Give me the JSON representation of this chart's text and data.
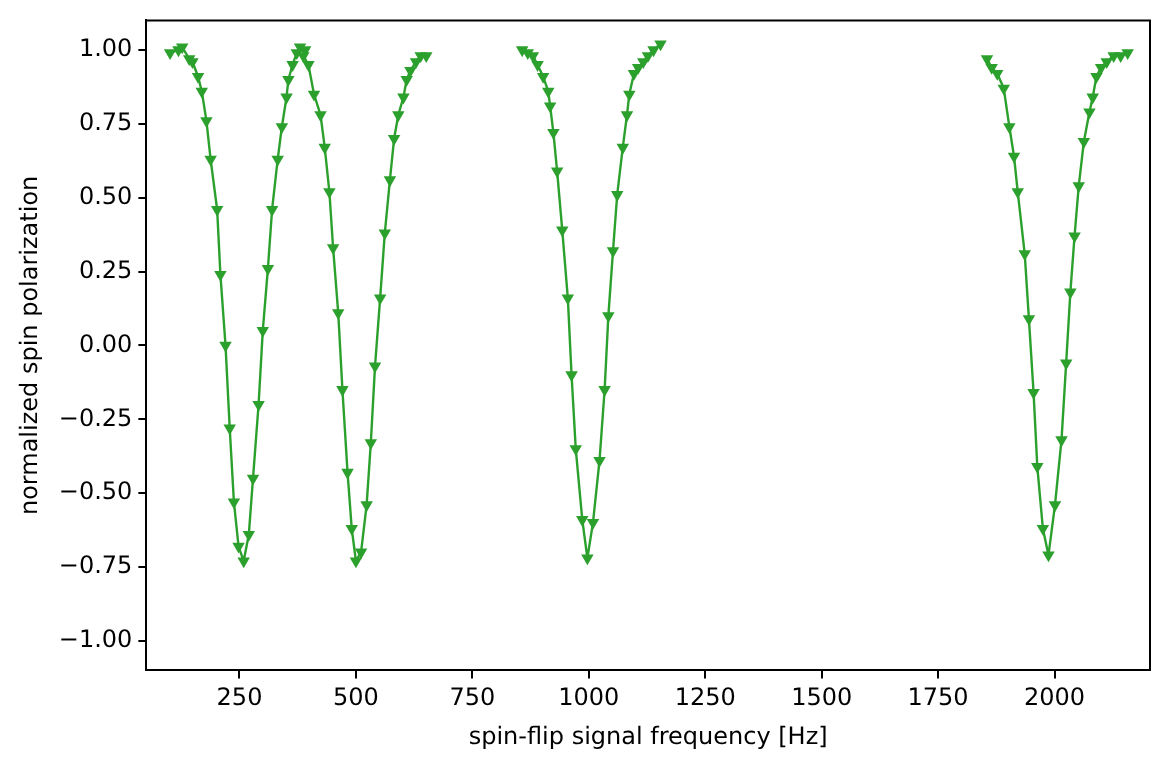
{
  "chart_data": {
    "type": "line",
    "xlabel": "spin-flip signal frequency [Hz]",
    "ylabel": "normalized spin polarization",
    "xlim": [
      50,
      2205
    ],
    "ylim": [
      -1.1,
      1.1
    ],
    "xticks": [
      250,
      500,
      750,
      1000,
      1250,
      1500,
      1750,
      2000
    ],
    "yticks": [
      {
        "value": -1,
        "label": "−1.00"
      },
      {
        "value": -0.75,
        "label": "−0.75"
      },
      {
        "value": -0.5,
        "label": "−0.50"
      },
      {
        "value": -0.25,
        "label": "−0.25"
      },
      {
        "value": 0,
        "label": "0.00"
      },
      {
        "value": 0.25,
        "label": "0.25"
      },
      {
        "value": 0.5,
        "label": "0.50"
      },
      {
        "value": 0.75,
        "label": "0.75"
      },
      {
        "value": 1,
        "label": "1.00"
      }
    ],
    "grid": false,
    "legend": false,
    "marker": "triangle",
    "line_style": "solid",
    "series": [
      {
        "color": "#2ca02c",
        "x": [
          101,
          119,
          127,
          142,
          149,
          161,
          169,
          179,
          188,
          202,
          209,
          220,
          229,
          238,
          248,
          259,
          270,
          279,
          291,
          300,
          311,
          320,
          332,
          341,
          351,
          355,
          364,
          373,
          380,
          391
        ],
        "values": [
          0.99,
          1.0,
          1.01,
          0.97,
          0.96,
          0.91,
          0.86,
          0.76,
          0.63,
          0.46,
          0.24,
          0.0,
          -0.28,
          -0.53,
          -0.68,
          -0.73,
          -0.64,
          -0.45,
          -0.2,
          0.05,
          0.26,
          0.46,
          0.63,
          0.74,
          0.84,
          0.9,
          0.95,
          0.99,
          1.01,
          1.0
        ]
      },
      {
        "color": "#2ca02c",
        "x": [
          387,
          398,
          410,
          424,
          433,
          443,
          451,
          462,
          471,
          482,
          491,
          500,
          511,
          523,
          532,
          541,
          552,
          562,
          573,
          582,
          591,
          602,
          609,
          617,
          629,
          639,
          651
        ],
        "values": [
          0.98,
          0.95,
          0.85,
          0.78,
          0.67,
          0.52,
          0.33,
          0.11,
          -0.15,
          -0.43,
          -0.62,
          -0.73,
          -0.7,
          -0.54,
          -0.33,
          -0.07,
          0.16,
          0.38,
          0.56,
          0.7,
          0.78,
          0.84,
          0.9,
          0.93,
          0.96,
          0.98,
          0.98
        ]
      },
      {
        "color": "#2ca02c",
        "x": [
          857,
          869,
          880,
          890,
          902,
          913,
          917,
          924,
          932,
          943,
          955,
          963,
          972,
          986,
          997,
          1009,
          1023,
          1034,
          1042,
          1052,
          1061,
          1073,
          1082,
          1087,
          1097,
          1106,
          1117,
          1127,
          1139,
          1154
        ],
        "values": [
          1.0,
          0.99,
          0.98,
          0.95,
          0.91,
          0.86,
          0.81,
          0.72,
          0.59,
          0.39,
          0.16,
          -0.1,
          -0.35,
          -0.59,
          -0.72,
          -0.6,
          -0.39,
          -0.15,
          0.1,
          0.32,
          0.51,
          0.67,
          0.78,
          0.85,
          0.92,
          0.94,
          0.96,
          0.98,
          1.0,
          1.02
        ]
      },
      {
        "color": "#2ca02c",
        "x": [
          1855,
          1865,
          1877,
          1891,
          1903,
          1913,
          1921,
          1936,
          1945,
          1955,
          1963,
          1975,
          1987,
          2001,
          2015,
          2025,
          2034,
          2043,
          2052,
          2063,
          2075,
          2082,
          2090,
          2100,
          2112,
          2127,
          2142,
          2157
        ],
        "values": [
          0.97,
          0.94,
          0.92,
          0.87,
          0.74,
          0.64,
          0.52,
          0.31,
          0.09,
          -0.16,
          -0.41,
          -0.62,
          -0.71,
          -0.54,
          -0.32,
          -0.06,
          0.18,
          0.37,
          0.54,
          0.69,
          0.79,
          0.84,
          0.91,
          0.94,
          0.96,
          0.98,
          0.98,
          0.99
        ]
      }
    ]
  }
}
